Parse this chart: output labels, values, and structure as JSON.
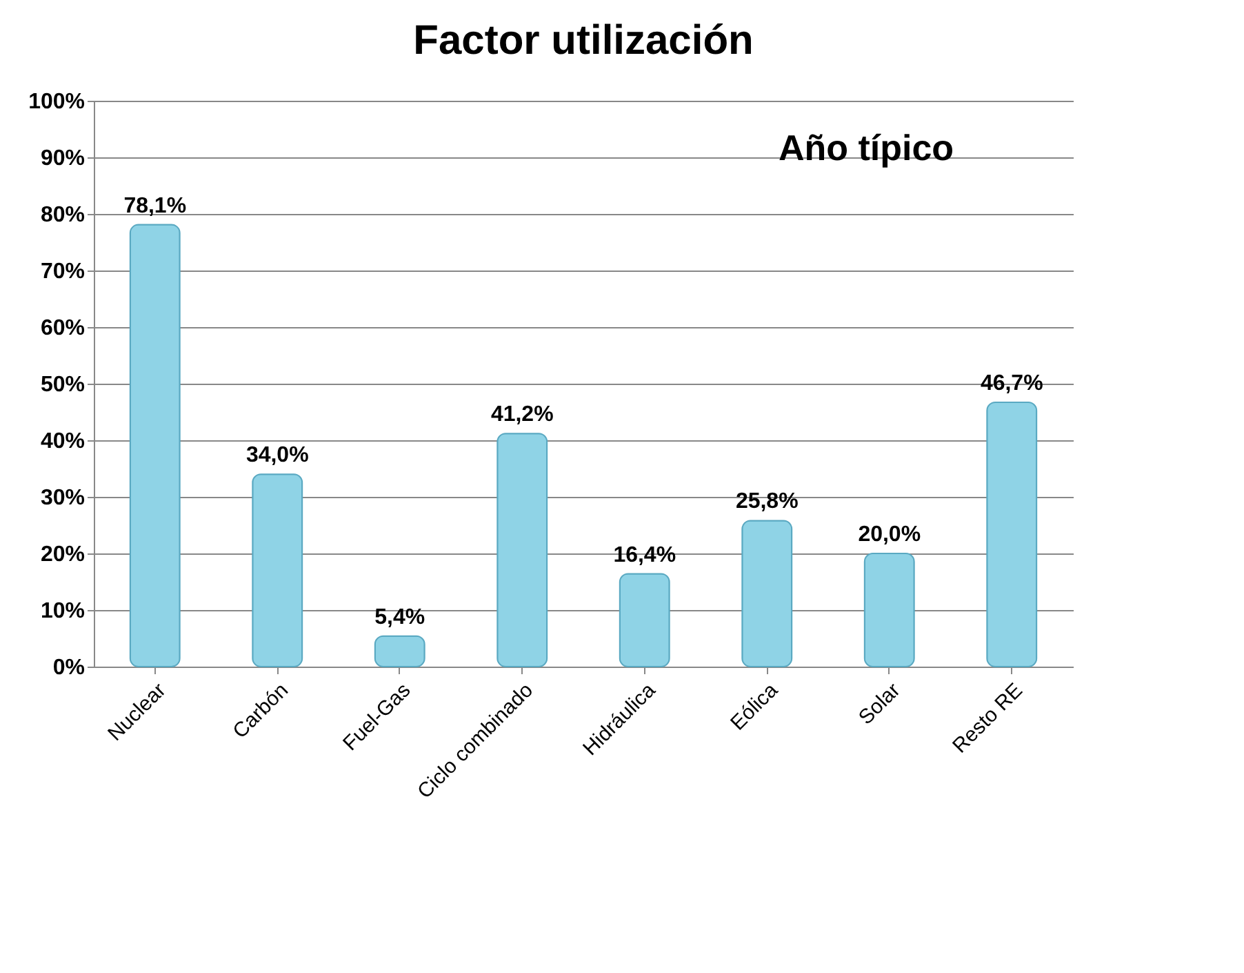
{
  "chart_data": {
    "type": "bar",
    "title": "Factor utilización",
    "categories": [
      "Nuclear",
      "Carbón",
      "Fuel-Gas",
      "Ciclo combinado",
      "Hidráulica",
      "Eólica",
      "Solar",
      "Resto RE"
    ],
    "values": [
      78.1,
      34.0,
      5.4,
      41.2,
      16.4,
      25.8,
      20.0,
      46.7
    ],
    "value_labels": [
      "78,1%",
      "34,0%",
      "5,4%",
      "41,2%",
      "16,4%",
      "25,8%",
      "20,0%",
      "46,7%"
    ],
    "color": "#8fd3e6",
    "ylim": [
      0,
      100
    ],
    "yticks": [
      {
        "value": 0,
        "label": "0%"
      },
      {
        "value": 10,
        "label": "10%"
      },
      {
        "value": 20,
        "label": "20%"
      },
      {
        "value": 30,
        "label": "30%"
      },
      {
        "value": 40,
        "label": "40%"
      },
      {
        "value": 50,
        "label": "50%"
      },
      {
        "value": 60,
        "label": "60%"
      },
      {
        "value": 70,
        "label": "70%"
      },
      {
        "value": 80,
        "label": "80%"
      },
      {
        "value": 90,
        "label": "90%"
      },
      {
        "value": 100,
        "label": "100%"
      }
    ],
    "grid": "y",
    "annotations": [
      "Año típico"
    ]
  }
}
